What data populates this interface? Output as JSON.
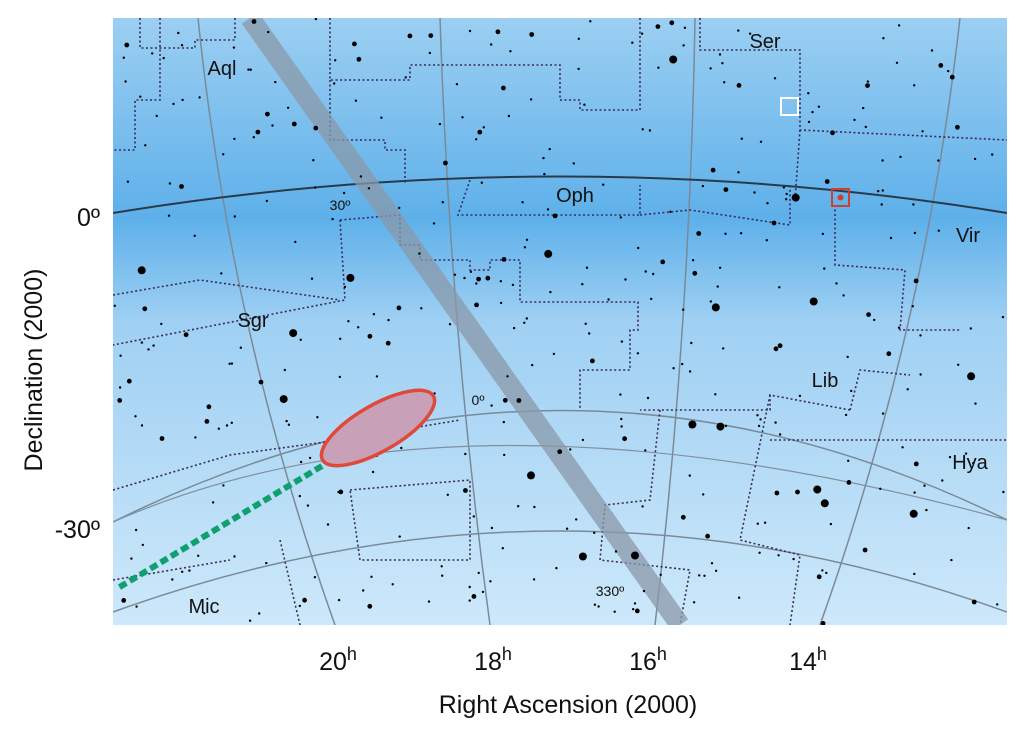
{
  "axes": {
    "x_label": "Right Ascension (2000)",
    "y_label": "Declination (2000)",
    "x_ticks": [
      {
        "number": "20",
        "unit": "h"
      },
      {
        "number": "18",
        "unit": "h"
      },
      {
        "number": "16",
        "unit": "h"
      },
      {
        "number": "14",
        "unit": "h"
      }
    ],
    "y_ticks": [
      "0º",
      "-30º"
    ]
  },
  "constellations": [
    "Aql",
    "Ser",
    "Oph",
    "Vir",
    "Sgr",
    "Lib",
    "Hya",
    "Mic"
  ],
  "galactic_longitudes": [
    "30º",
    "0º",
    "330º"
  ]
}
